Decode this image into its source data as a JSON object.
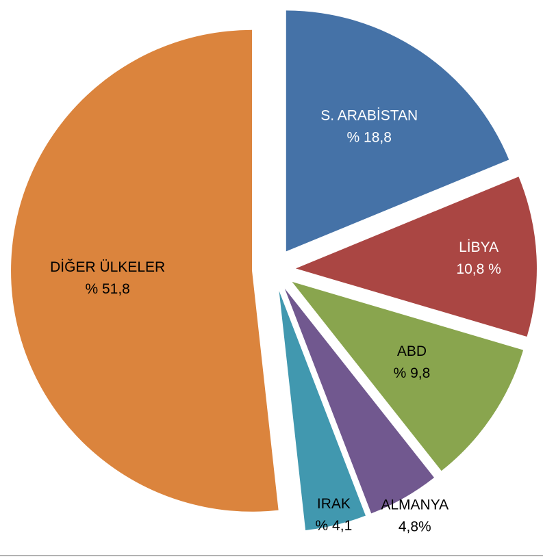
{
  "chart_data": {
    "type": "pie",
    "categories": [
      "S. ARABİSTAN",
      "LİBYA",
      "ABD",
      "ALMANYA",
      "IRAK",
      "DİĞER ÜLKELER"
    ],
    "values": [
      18.8,
      10.8,
      9.8,
      4.8,
      4.1,
      51.8
    ],
    "value_labels": [
      "% 18,8",
      "10,8 %",
      "% 9,8",
      "4,8%",
      "% 4,1",
      "% 51,8"
    ],
    "colors": [
      "#4572a7",
      "#aa4643",
      "#89a54e",
      "#71588f",
      "#4198af",
      "#db843d"
    ]
  }
}
